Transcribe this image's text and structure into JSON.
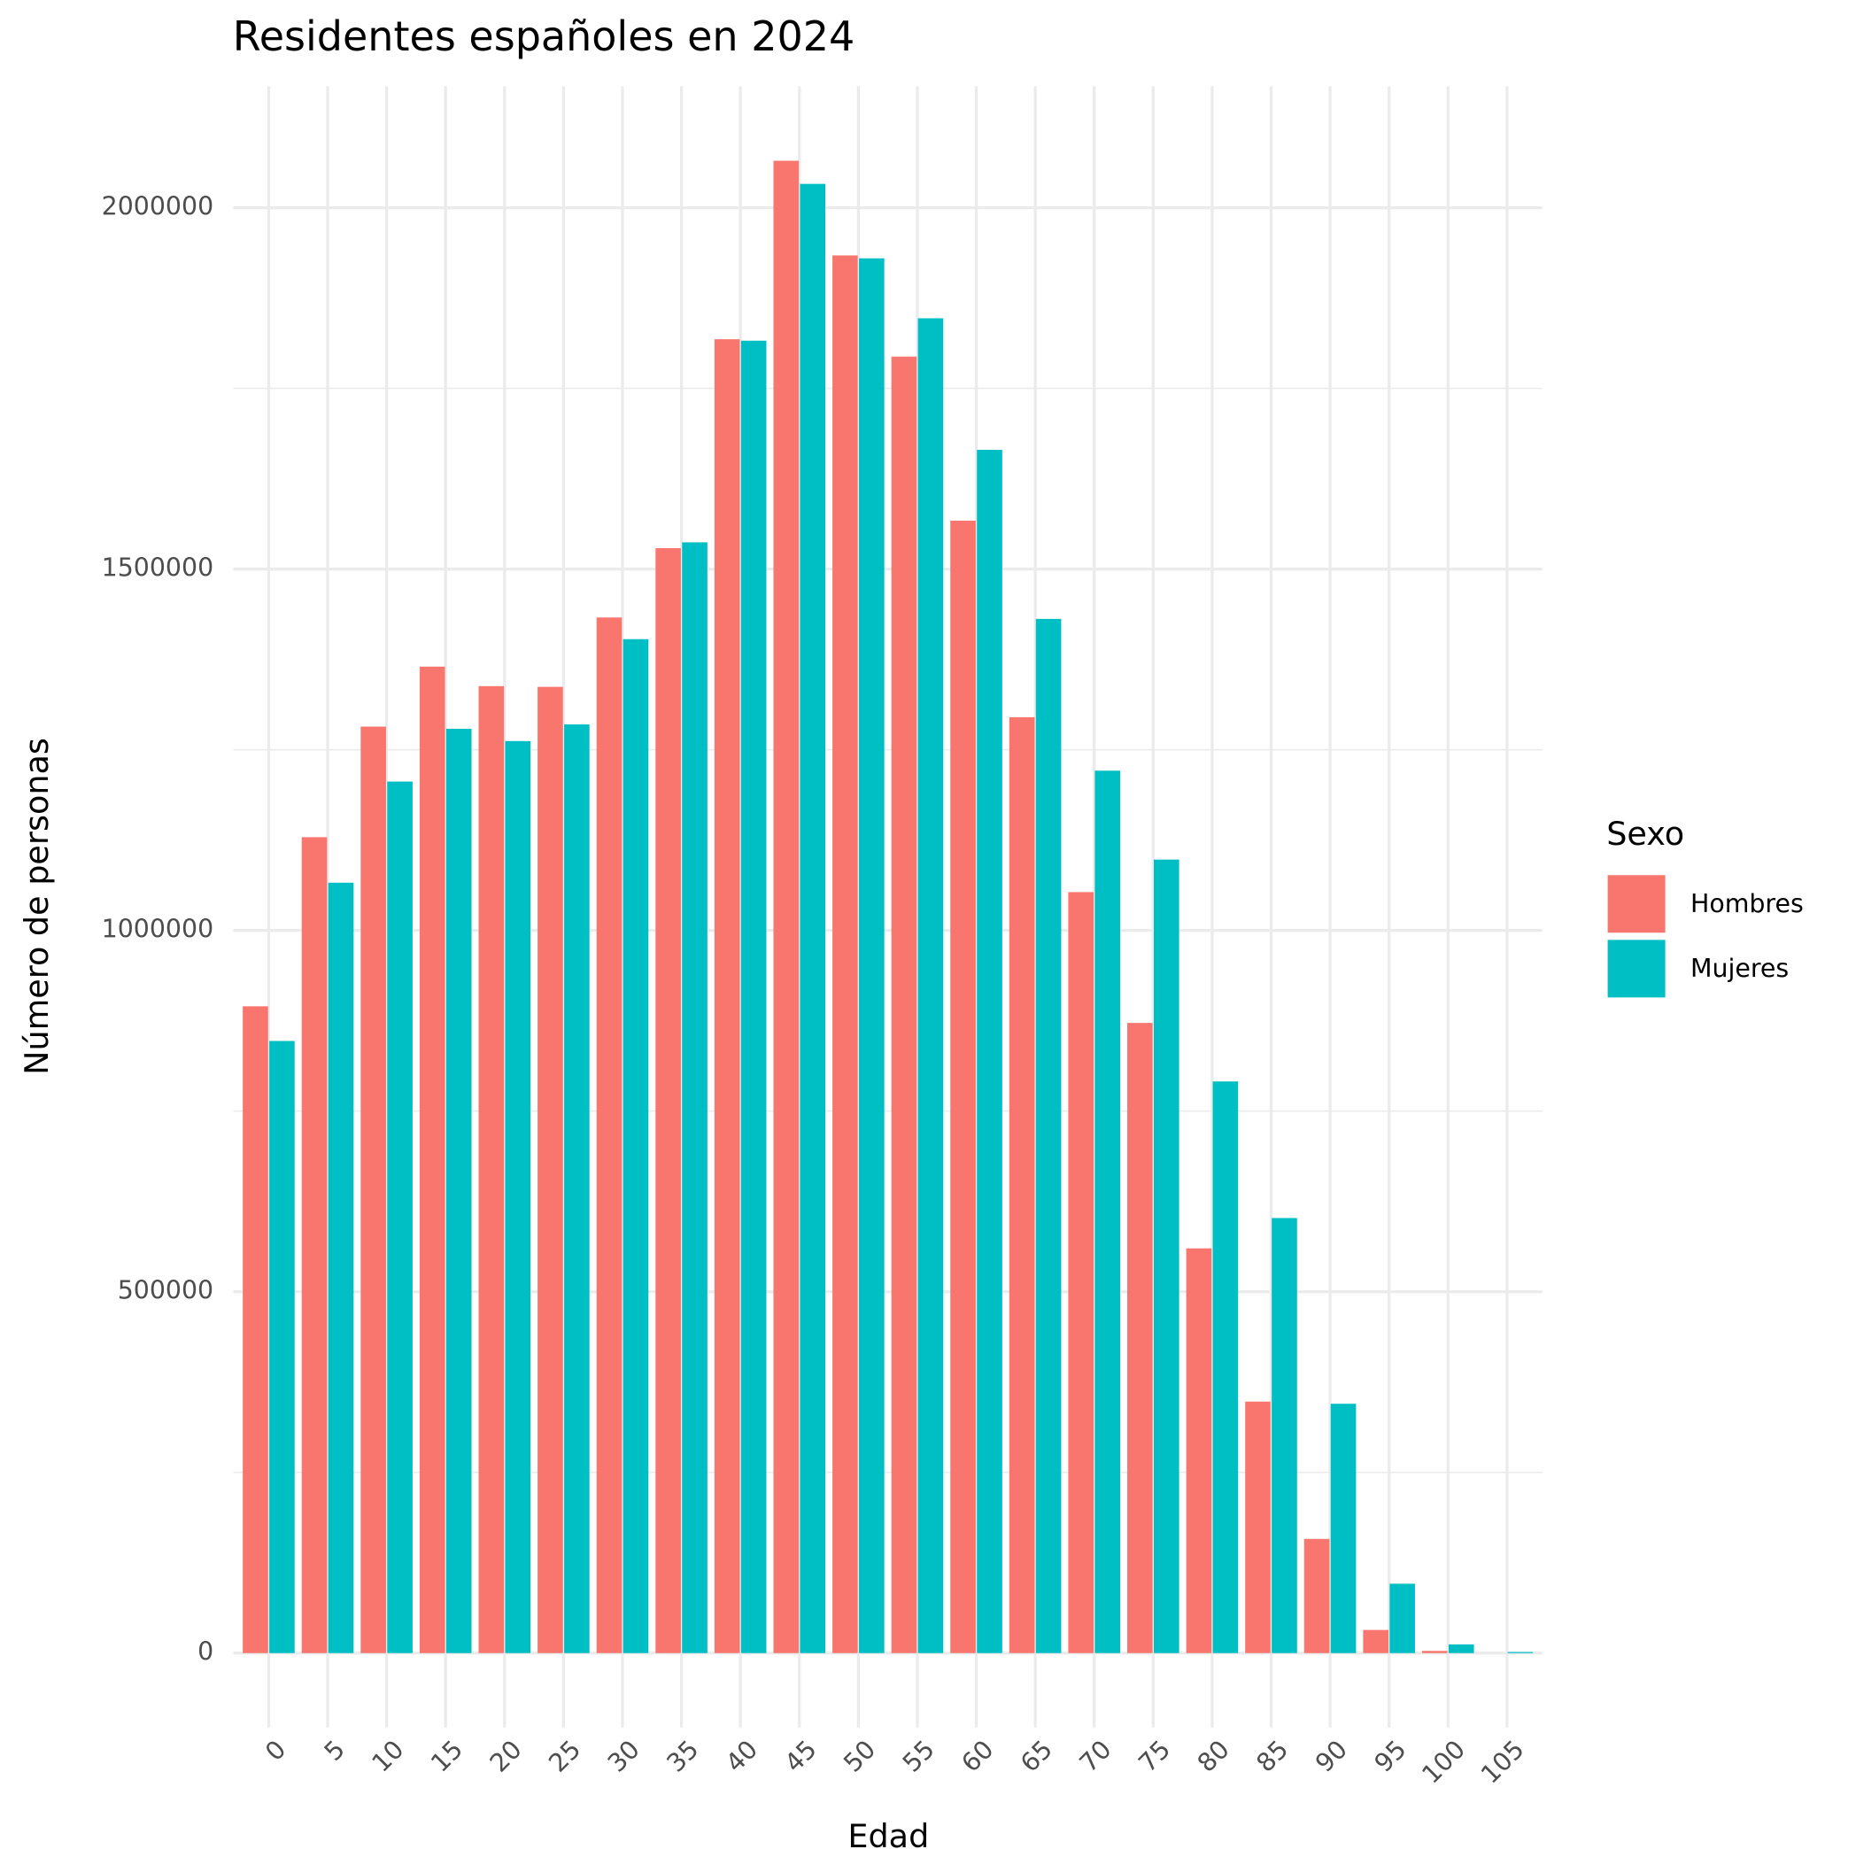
{
  "chart_data": {
    "type": "bar",
    "title": "Residentes españoles en 2024",
    "x_label": "Edad",
    "y_label": "Número de personas",
    "legend_title": "Sexo",
    "legend_position": "right",
    "grid": true,
    "categories": [
      "0",
      "5",
      "10",
      "15",
      "20",
      "25",
      "30",
      "35",
      "40",
      "45",
      "50",
      "55",
      "60",
      "65",
      "70",
      "75",
      "80",
      "85",
      "90",
      "95",
      "100",
      "105"
    ],
    "series": [
      {
        "name": "Hombres",
        "color": "#f8766d",
        "values": [
          895000,
          1129000,
          1282000,
          1365000,
          1338000,
          1337000,
          1433000,
          1529000,
          1818000,
          2065000,
          1934000,
          1794000,
          1567000,
          1295000,
          1053000,
          872000,
          560000,
          348000,
          158000,
          32000,
          3000,
          0
        ]
      },
      {
        "name": "Mujeres",
        "color": "#00bfc4",
        "values": [
          847000,
          1066000,
          1206000,
          1279000,
          1262000,
          1285000,
          1403000,
          1537000,
          1816000,
          2033000,
          1930000,
          1847000,
          1665000,
          1431000,
          1221000,
          1098000,
          791000,
          602000,
          345000,
          96000,
          12000,
          1500
        ]
      }
    ],
    "ylim": [
      -103000,
      2168000
    ],
    "yticks": [
      0,
      500000,
      1000000,
      1500000,
      2000000
    ],
    "minor_yticks": [
      250000,
      750000,
      1250000,
      1750000
    ]
  }
}
